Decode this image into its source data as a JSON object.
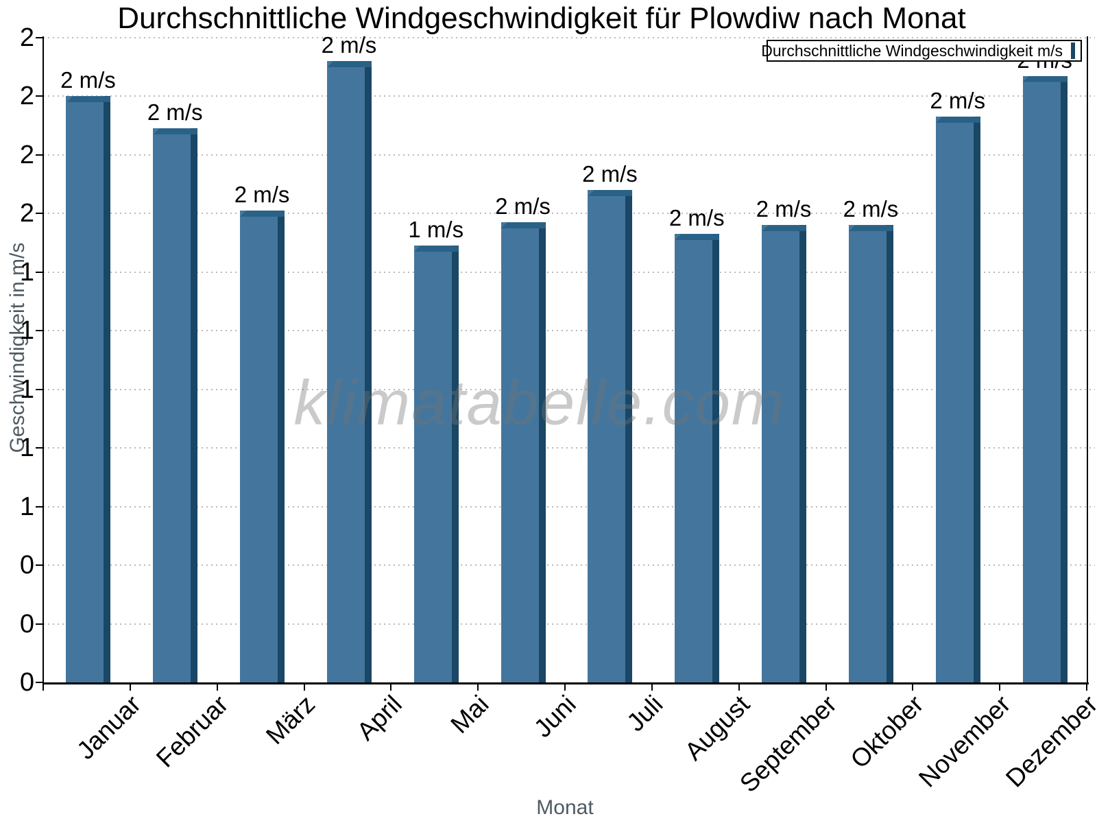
{
  "title": "Durchschnittliche Windgeschwindigkeit für Plowdiw nach Monat",
  "legend": {
    "label": "Durchschnittliche Windgeschwindigkeit m/s"
  },
  "watermark": "klimatabelle.com",
  "axes": {
    "y_title": "Geschwindigkeit in m/s",
    "x_title": "Monat"
  },
  "colors": {
    "bar_face": "#44769D",
    "bar_side": "#1A4765",
    "bar_bevel": "#2A6186",
    "gridline": "#b9b9b9",
    "axis": "#000000",
    "axis_title": "#4d5a63",
    "watermark": "rgba(115,115,115,0.38)"
  },
  "chart_data": {
    "type": "bar",
    "title": "Durchschnittliche Windgeschwindigkeit für Plowdiw nach Monat",
    "xlabel": "Monat",
    "ylabel": "Geschwindigkeit in m/s",
    "categories": [
      "Januar",
      "Februar",
      "März",
      "April",
      "Mai",
      "Juni",
      "Juli",
      "August",
      "September",
      "Oktober",
      "November",
      "Dezember"
    ],
    "values": [
      2.0,
      1.89,
      1.61,
      2.12,
      1.49,
      1.57,
      1.68,
      1.53,
      1.56,
      1.56,
      1.93,
      2.07
    ],
    "bar_labels": [
      "2 m/s",
      "2 m/s",
      "2 m/s",
      "2 m/s",
      "1 m/s",
      "2 m/s",
      "2 m/s",
      "2 m/s",
      "2 m/s",
      "2 m/s",
      "2 m/s",
      "2 m/s"
    ],
    "series_name": "Durchschnittliche Windgeschwindigkeit m/s",
    "ylim": [
      0,
      2.2
    ],
    "ytick_step": 0.2,
    "ytick_labels_bottom_to_top": [
      "0",
      "0",
      "0",
      "1",
      "1",
      "1",
      "1",
      "1",
      "2",
      "2",
      "2",
      "2"
    ],
    "grid": "horizontal-dotted",
    "legend_position": "top-right",
    "watermark": "klimatabelle.com"
  }
}
